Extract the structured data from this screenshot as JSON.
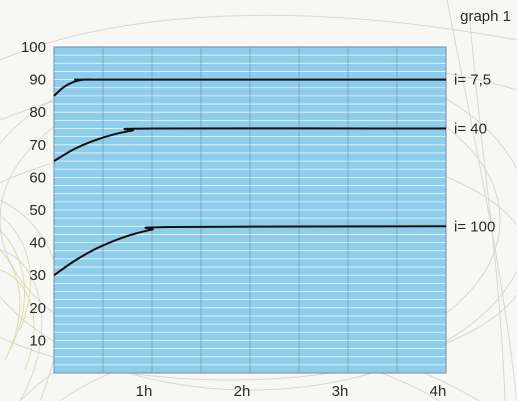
{
  "figure_label": "graph 1",
  "chart_data": {
    "type": "line",
    "x_ticks": [
      "1h",
      "2h",
      "3h",
      "4h"
    ],
    "y_ticks": [
      10,
      20,
      30,
      40,
      50,
      60,
      70,
      80,
      90,
      100
    ],
    "xlim": [
      0,
      4
    ],
    "ylim": [
      0,
      100
    ],
    "grid": true,
    "legend": "right-of-plot, inline at line ends",
    "colors": {
      "plot_background": "#8fcdec",
      "gridline": "#ffffff",
      "series_line": "#111111"
    },
    "series": [
      {
        "name": "i= 7,5",
        "x": [
          0,
          0.1,
          0.2,
          0.3,
          0.4,
          0.5,
          4
        ],
        "y": [
          85,
          87.7,
          89.3,
          90,
          90,
          90,
          90
        ]
      },
      {
        "name": "i= 40",
        "x": [
          0,
          0.2,
          0.4,
          0.6,
          0.8,
          1.0,
          4
        ],
        "y": [
          65,
          68.6,
          71.2,
          73.1,
          74.4,
          75,
          75
        ]
      },
      {
        "name": "i= 100",
        "x": [
          0,
          0.2,
          0.4,
          0.6,
          0.8,
          1.0,
          1.2,
          4
        ],
        "y": [
          30,
          34.2,
          37.7,
          40.4,
          42.5,
          44,
          44.8,
          45
        ]
      }
    ]
  }
}
